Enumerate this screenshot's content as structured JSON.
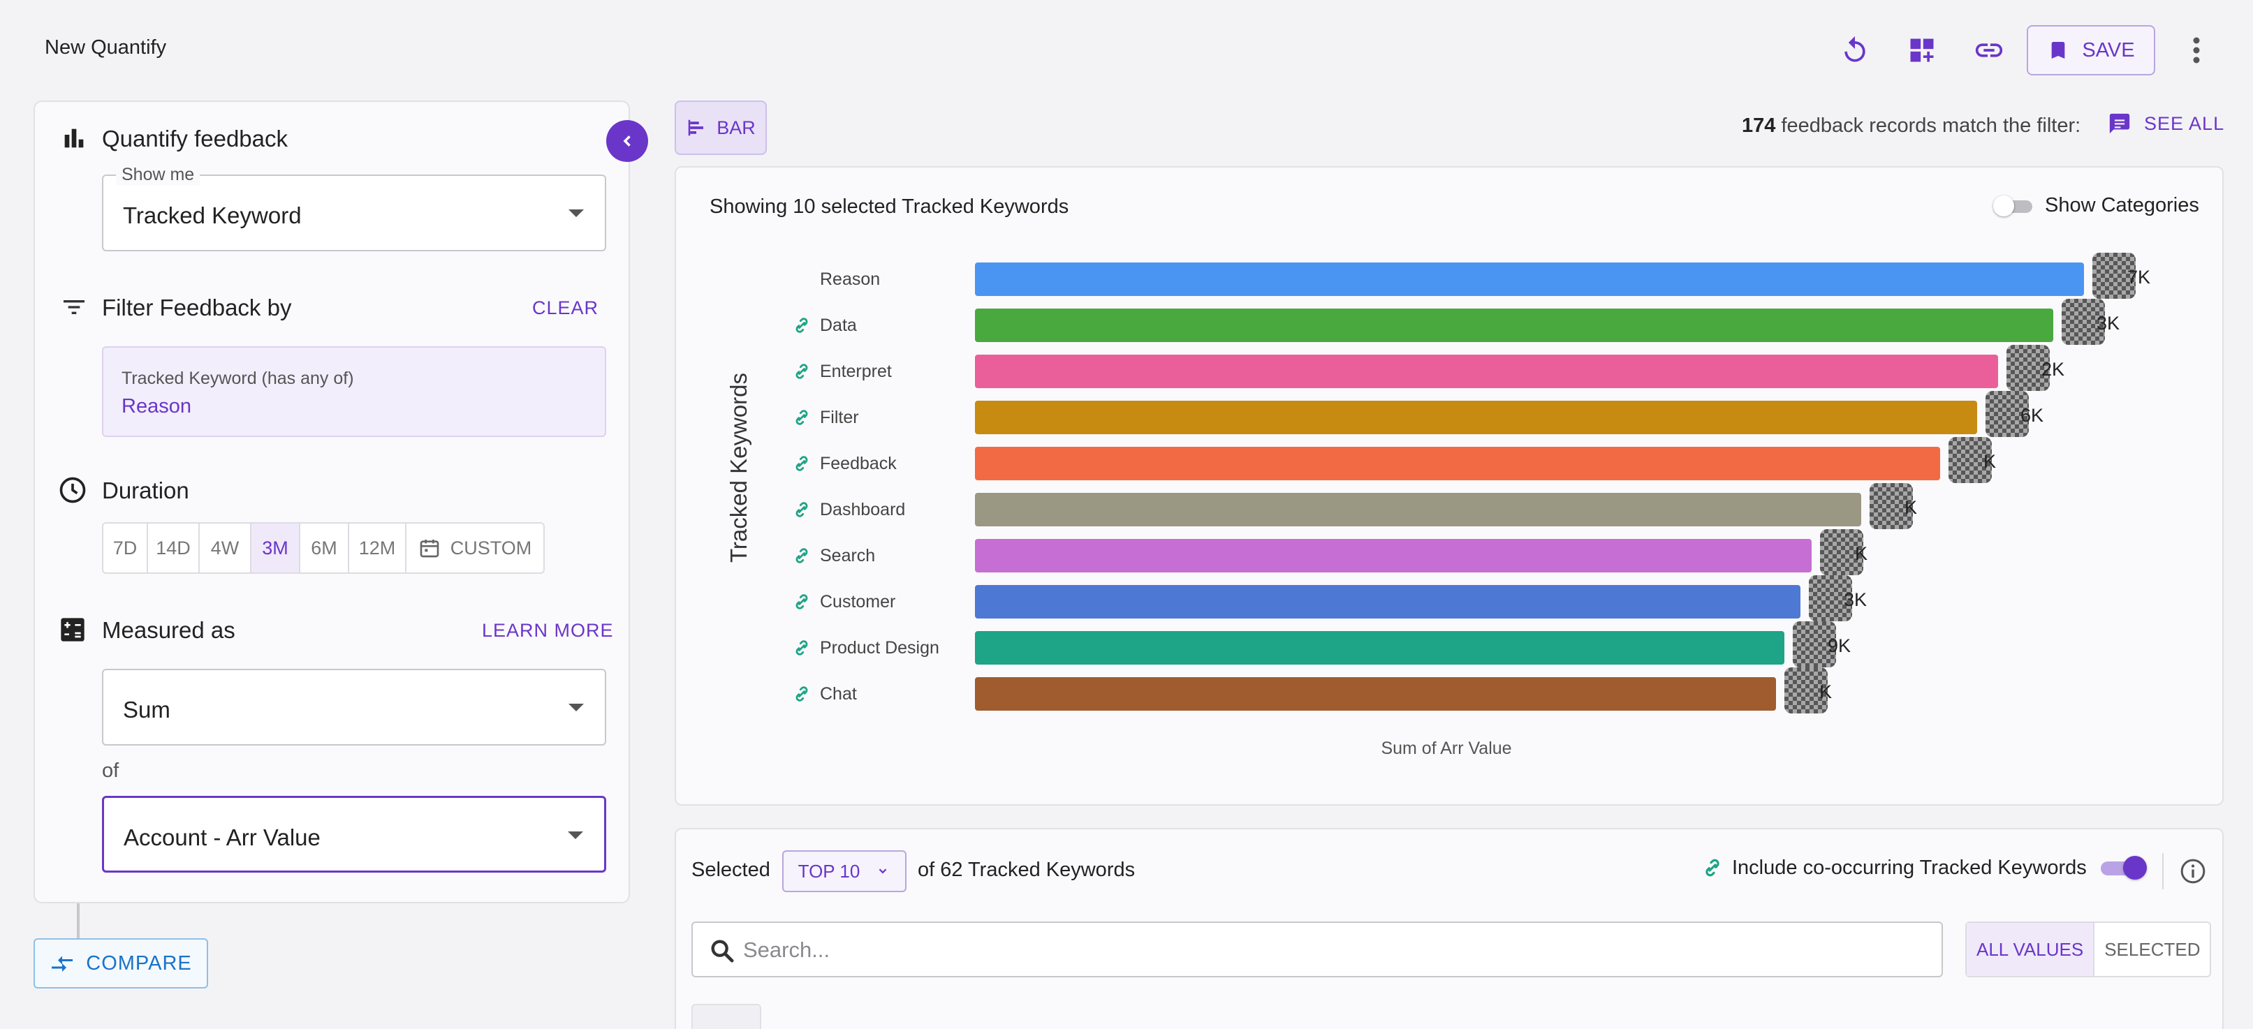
{
  "header": {
    "title": "New Quantify",
    "save_label": "SAVE",
    "icons": [
      "refresh-icon",
      "add-widget-icon",
      "link-icon",
      "bookmark-icon",
      "more-vert-icon"
    ]
  },
  "left": {
    "quantify_title": "Quantify feedback",
    "show_me_label": "Show me",
    "show_me_value": "Tracked Keyword",
    "filter_title": "Filter Feedback by",
    "clear_label": "CLEAR",
    "filter_key": "Tracked Keyword  (has any of)",
    "filter_value": "Reason",
    "duration_title": "Duration",
    "durations": [
      "7D",
      "14D",
      "4W",
      "3M",
      "6M",
      "12M"
    ],
    "duration_selected": "3M",
    "custom_label": "CUSTOM",
    "measured_title": "Measured as",
    "learn_more": "LEARN MORE",
    "measure_value": "Sum",
    "of_label": "of",
    "field_value": "Account - Arr Value",
    "compare_label": "COMPARE"
  },
  "toolbar": {
    "chart_type_label": "BAR",
    "match_count": "174",
    "match_text": " feedback records match the filter:",
    "see_all": "SEE ALL"
  },
  "chart": {
    "heading": "Showing 10 selected Tracked Keywords",
    "show_categories": "Show Categories"
  },
  "chart_data": {
    "type": "bar",
    "orientation": "horizontal",
    "title": "Showing 10 selected Tracked Keywords",
    "xlabel": "Sum of Arr Value",
    "ylabel": "Tracked Keywords",
    "categories": [
      "Reason",
      "Data",
      "Enterpret",
      "Filter",
      "Feedback",
      "Dashboard",
      "Search",
      "Customer",
      "Product Design",
      "Chat"
    ],
    "values": [
      1585,
      1541,
      1462,
      1432,
      1379,
      1267,
      1196,
      1180,
      1157,
      1145
    ],
    "value_labels": [
      "7K",
      "3K",
      "2K",
      "6K",
      "K",
      "K",
      "K",
      "3K",
      "9K",
      "K"
    ],
    "linked": [
      false,
      true,
      true,
      true,
      true,
      true,
      true,
      true,
      true,
      true
    ],
    "colors": [
      "#4a95f2",
      "#49a93f",
      "#ea5f99",
      "#c68b10",
      "#f26a43",
      "#9a9782",
      "#c66ed4",
      "#4d78d4",
      "#1ea486",
      "#a05c2e"
    ],
    "xlim": [
      0,
      1585
    ],
    "grid": false,
    "legend": "none",
    "note": "value labels partially obscured by pixelation in the source image"
  },
  "bottom": {
    "selected_label": "Selected",
    "top_value": "TOP 10",
    "of_tracked": "of 62 Tracked Keywords",
    "cooccur_label": "Include co-occurring Tracked Keywords",
    "search_placeholder": "Search...",
    "all_values": "ALL VALUES",
    "selected_tab": "SELECTED"
  }
}
